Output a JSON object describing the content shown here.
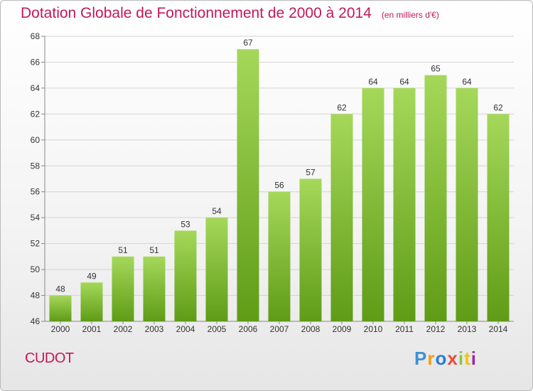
{
  "header": {
    "title": "Dotation Globale de Fonctionnement de 2000 à 2014",
    "unit": "(en milliers d'€)"
  },
  "commune": "CUDOT",
  "brand": "Proxiti",
  "colors": {
    "title": "#c2185b",
    "bar_light": "#a5d85a",
    "bar_dark": "#5f9c16",
    "axis": "#888888",
    "grid": "#d4d4d4"
  },
  "chart_data": {
    "type": "bar",
    "title": "Dotation Globale de Fonctionnement de 2000 à 2014",
    "subtitle": "(en milliers d'€)",
    "xlabel": "",
    "ylabel": "",
    "categories": [
      "2000",
      "2001",
      "2002",
      "2003",
      "2004",
      "2005",
      "2006",
      "2007",
      "2008",
      "2009",
      "2010",
      "2011",
      "2012",
      "2013",
      "2014"
    ],
    "values": [
      48,
      49,
      51,
      51,
      53,
      54,
      67,
      56,
      57,
      62,
      64,
      64,
      65,
      64,
      62
    ],
    "ylim": [
      46,
      68
    ],
    "yticks": [
      46,
      48,
      50,
      52,
      54,
      56,
      58,
      60,
      62,
      64,
      66,
      68
    ],
    "grid": true,
    "legend": "none"
  }
}
